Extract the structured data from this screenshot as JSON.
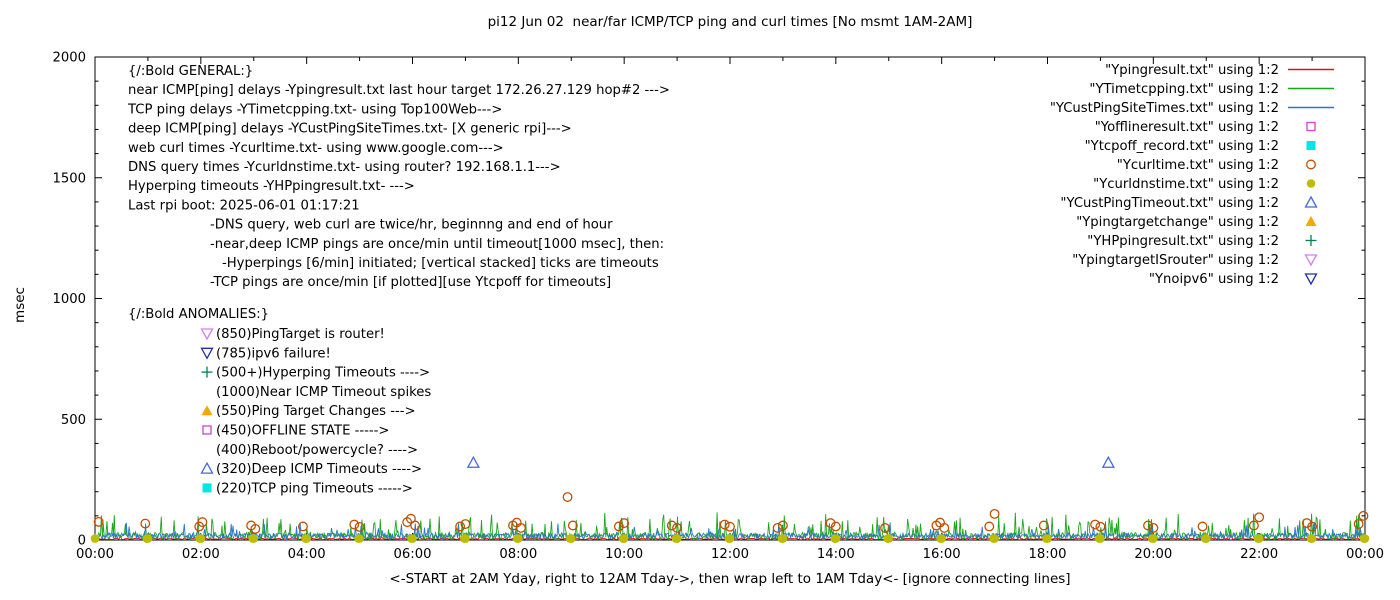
{
  "title": "pi12 Jun 02  near/far ICMP/TCP ping and curl times [No msmt 1AM-2AM]",
  "chart_data": {
    "type": "line+scatter",
    "title": "pi12 Jun 02  near/far ICMP/TCP ping and curl times [No msmt 1AM-2AM]",
    "xlabel": "<-START at 2AM Yday, right to 12AM Tday->, then wrap left to 1AM Tday<- [ignore connecting lines]",
    "ylabel": "msec",
    "ylim": [
      0,
      2000
    ],
    "xlim_hours": [
      0,
      24
    ],
    "grid": false,
    "legend_position": "top-right",
    "y_ticks": [
      0,
      500,
      1000,
      1500,
      2000
    ],
    "x_tick_hours": [
      0,
      2,
      4,
      6,
      8,
      10,
      12,
      14,
      16,
      18,
      20,
      22,
      24
    ],
    "x_tick_labels": [
      "00:00",
      "02:00",
      "04:00",
      "06:00",
      "08:00",
      "10:00",
      "12:00",
      "14:00",
      "16:00",
      "18:00",
      "20:00",
      "22:00",
      "00:00"
    ],
    "noise_series": [
      {
        "name": "Ypingresult.txt",
        "color": "#e01212",
        "seed": 101,
        "points": 900,
        "base": 2,
        "noise": 6,
        "spike_prob": 0.02,
        "spike_max": 18
      },
      {
        "name": "YTimetcpping.txt",
        "color": "#1ea51e",
        "seed": 202,
        "points": 1380,
        "base": 3,
        "noise": 28,
        "spike_prob": 0.16,
        "spike_max": 90
      },
      {
        "name": "YCustPingSiteTimes.txt",
        "color": "#2878c8",
        "seed": 303,
        "points": 1380,
        "base": 6,
        "noise": 22,
        "spike_prob": 0.08,
        "spike_max": 48
      }
    ],
    "scatter_series": [
      {
        "name": "Ycurltime.txt",
        "marker": "circle-open",
        "color": "#c05000",
        "points": [
          [
            0.07,
            75
          ],
          [
            0.95,
            68
          ],
          [
            1.97,
            56
          ],
          [
            2.03,
            74
          ],
          [
            2.95,
            60
          ],
          [
            3.03,
            46
          ],
          [
            3.93,
            56
          ],
          [
            4.9,
            64
          ],
          [
            5.0,
            54
          ],
          [
            5.9,
            74
          ],
          [
            5.97,
            88
          ],
          [
            6.05,
            60
          ],
          [
            6.9,
            56
          ],
          [
            7.0,
            66
          ],
          [
            7.9,
            60
          ],
          [
            7.97,
            72
          ],
          [
            8.05,
            50
          ],
          [
            8.93,
            178
          ],
          [
            9.03,
            60
          ],
          [
            9.9,
            56
          ],
          [
            10.0,
            70
          ],
          [
            10.9,
            60
          ],
          [
            11.0,
            50
          ],
          [
            11.9,
            64
          ],
          [
            12.0,
            55
          ],
          [
            12.9,
            50
          ],
          [
            13.0,
            60
          ],
          [
            13.9,
            70
          ],
          [
            14.0,
            56
          ],
          [
            14.93,
            50
          ],
          [
            15.9,
            60
          ],
          [
            15.97,
            72
          ],
          [
            16.05,
            50
          ],
          [
            16.9,
            56
          ],
          [
            17.0,
            108
          ],
          [
            17.93,
            60
          ],
          [
            18.9,
            64
          ],
          [
            19.0,
            55
          ],
          [
            19.9,
            60
          ],
          [
            20.0,
            50
          ],
          [
            20.93,
            56
          ],
          [
            21.9,
            60
          ],
          [
            22.0,
            94
          ],
          [
            22.9,
            70
          ],
          [
            23.0,
            55
          ],
          [
            23.88,
            66
          ],
          [
            23.97,
            100
          ]
        ]
      },
      {
        "name": "Ycurldnstime.txt",
        "marker": "circle-filled",
        "color": "#bdbd00",
        "pattern": "hourly-pairs",
        "y": 6,
        "offsets": [
          0,
          0.98
        ],
        "hours": [
          0,
          1,
          2,
          3,
          4,
          5,
          6,
          7,
          8,
          9,
          10,
          11,
          12,
          13,
          14,
          15,
          16,
          17,
          18,
          19,
          20,
          21,
          22,
          23,
          24
        ]
      },
      {
        "name": "YCustPingTimeout.txt",
        "marker": "triangle-up-open",
        "color": "#4169e1",
        "points": [
          [
            7.15,
            320
          ],
          [
            19.15,
            320
          ]
        ]
      }
    ]
  },
  "legend": {
    "items": [
      {
        "label": "\"Ypingresult.txt\" using 1:2",
        "type": "line",
        "color": "#e01212"
      },
      {
        "label": "\"YTimetcpping.txt\" using 1:2",
        "type": "line",
        "color": "#1ea51e"
      },
      {
        "label": "\"YCustPingSiteTimes.txt\" using 1:2",
        "type": "line",
        "color": "#2878c8"
      },
      {
        "label": "\"Yofflineresult.txt\" using 1:2",
        "type": "square-open",
        "color": "#cc44cc"
      },
      {
        "label": "\"Ytcpoff_record.txt\" using 1:2",
        "type": "square-filled",
        "color": "#00e5e5"
      },
      {
        "label": "\"Ycurltime.txt\" using 1:2",
        "type": "circle-open",
        "color": "#c05000"
      },
      {
        "label": "\"Ycurldnstime.txt\" using 1:2",
        "type": "circle-filled",
        "color": "#bdbd00"
      },
      {
        "label": "\"YCustPingTimeout.txt\" using 1:2",
        "type": "triangle-up-open",
        "color": "#4169e1"
      },
      {
        "label": "\"Ypingtargetchange\" using 1:2",
        "type": "triangle-up-filled",
        "color": "#f5a800"
      },
      {
        "label": "\"YHPpingresult.txt\" using 1:2",
        "type": "plus",
        "color": "#008055"
      },
      {
        "label": "\"YpingtargetISrouter\" using 1:2",
        "type": "triangle-down-open",
        "color": "#d080f0"
      },
      {
        "label": "\"Ynoipv6\" using 1:2",
        "type": "triangle-down-open",
        "color": "#2030a8"
      }
    ]
  },
  "annotations": {
    "general": [
      {
        "text": "{/:Bold GENERAL:}",
        "indent": 0
      },
      {
        "text": "near ICMP[ping] delays -Ypingresult.txt last hour target 172.26.27.129 hop#2 --->",
        "indent": 0
      },
      {
        "text": "TCP ping delays -YTimetcpping.txt- using Top100Web--->",
        "indent": 0
      },
      {
        "text": "deep ICMP[ping] delays -YCustPingSiteTimes.txt- [X generic rpi]--->",
        "indent": 0
      },
      {
        "text": "web curl times -Ycurltime.txt- using www.google.com--->",
        "indent": 0
      },
      {
        "text": "DNS query times -Ycurldnstime.txt- using router? 192.168.1.1--->",
        "indent": 0
      },
      {
        "text": "Hyperping timeouts -YHPpingresult.txt- --->",
        "indent": 0
      },
      {
        "text": "Last rpi boot: 2025-06-01 01:17:21",
        "indent": 0
      },
      {
        "text": "-DNS query, web curl are twice/hr, beginnng and end of hour",
        "indent": 1
      },
      {
        "text": "-near,deep ICMP pings are once/min until timeout[1000 msec], then:",
        "indent": 1
      },
      {
        "text": "-Hyperpings [6/min] initiated; [vertical stacked] ticks are timeouts",
        "indent": 2
      },
      {
        "text": "-TCP pings are once/min [if plotted][use Ytcpoff for timeouts]",
        "indent": 1
      }
    ],
    "anomalies_header": "{/:Bold ANOMALIES:}",
    "anomalies": [
      {
        "text": "(850)PingTarget is router!",
        "marker": "triangle-down-open",
        "color": "#d080f0"
      },
      {
        "text": "(785)ipv6 failure!",
        "marker": "triangle-down-open",
        "color": "#2030a8"
      },
      {
        "text": "(500+)Hyperping Timeouts ---->",
        "marker": "plus",
        "color": "#008055"
      },
      {
        "text": "(1000)Near ICMP Timeout spikes",
        "marker": null,
        "color": null
      },
      {
        "text": "(550)Ping Target Changes --->",
        "marker": "triangle-up-filled",
        "color": "#f5a800"
      },
      {
        "text": "(450)OFFLINE STATE ----->",
        "marker": "square-open",
        "color": "#cc44cc"
      },
      {
        "text": "(400)Reboot/powercycle? ---->",
        "marker": null,
        "color": null
      },
      {
        "text": "(320)Deep ICMP Timeouts ---->",
        "marker": "triangle-up-open",
        "color": "#4169e1"
      },
      {
        "text": "(220)TCP ping Timeouts ----->",
        "marker": "square-filled",
        "color": "#00e5e5"
      }
    ]
  }
}
